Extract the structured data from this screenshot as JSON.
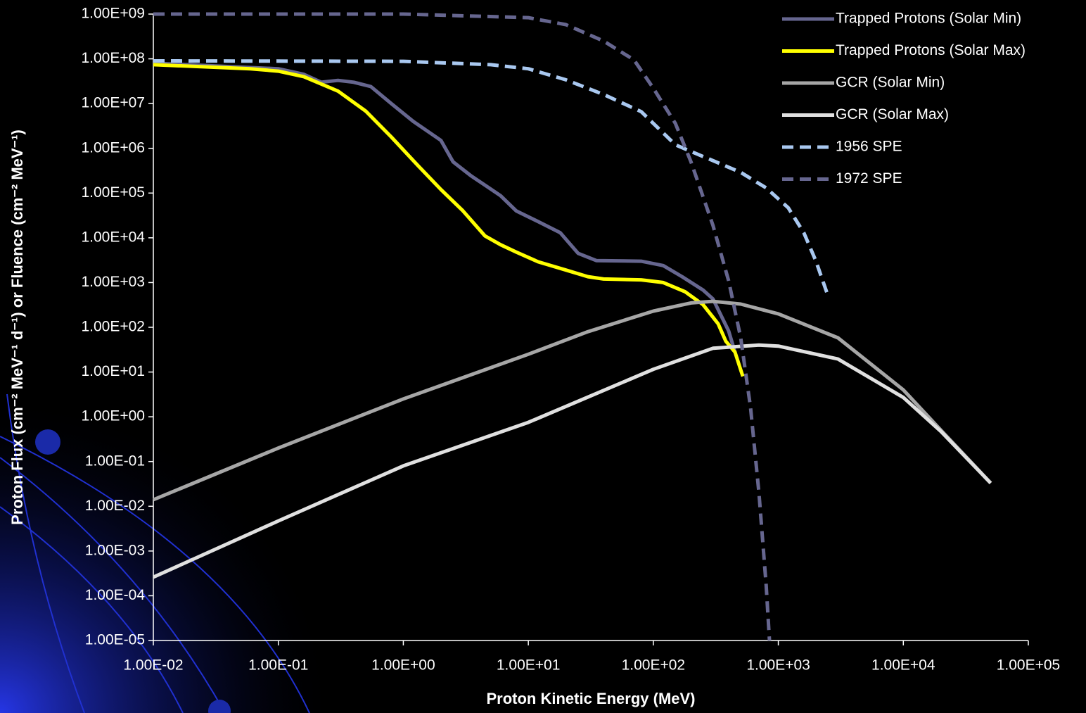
{
  "chart_data": {
    "type": "line",
    "x_label": "Proton Kinetic Energy (MeV)",
    "y_label": "Proton Flux (cm⁻² MeV⁻¹ d⁻¹) or Fluence (cm⁻² MeV⁻¹)",
    "log_x": true,
    "log_y": true,
    "legend": "top-right",
    "xlim": [
      0.01,
      100000
    ],
    "ylim": [
      1e-05,
      1000000000
    ],
    "xticks": [
      {
        "value": 0.01,
        "label": "1.00E-02"
      },
      {
        "value": 0.1,
        "label": "1.00E-01"
      },
      {
        "value": 1,
        "label": "1.00E+00"
      },
      {
        "value": 10,
        "label": "1.00E+01"
      },
      {
        "value": 100,
        "label": "1.00E+02"
      },
      {
        "value": 1000,
        "label": "1.00E+03"
      },
      {
        "value": 10000,
        "label": "1.00E+04"
      },
      {
        "value": 100000,
        "label": "1.00E+05"
      }
    ],
    "yticks": [
      {
        "value": 1000000000,
        "label": "1.00E+09"
      },
      {
        "value": 100000000,
        "label": "1.00E+08"
      },
      {
        "value": 10000000,
        "label": "1.00E+07"
      },
      {
        "value": 1000000,
        "label": "1.00E+06"
      },
      {
        "value": 100000,
        "label": "1.00E+05"
      },
      {
        "value": 10000,
        "label": "1.00E+04"
      },
      {
        "value": 1000,
        "label": "1.00E+03"
      },
      {
        "value": 100,
        "label": "1.00E+02"
      },
      {
        "value": 10,
        "label": "1.00E+01"
      },
      {
        "value": 1,
        "label": "1.00E+00"
      },
      {
        "value": 0.1,
        "label": "1.00E-01"
      },
      {
        "value": 0.01,
        "label": "1.00E-02"
      },
      {
        "value": 0.001,
        "label": "1.00E-03"
      },
      {
        "value": 0.0001,
        "label": "1.00E-04"
      },
      {
        "value": 1e-05,
        "label": "1.00E-05"
      }
    ],
    "series": [
      {
        "name": "Trapped Protons (Solar Min)",
        "color": "#66668f",
        "dash": false,
        "x": [
          0.01,
          0.1,
          0.16,
          0.22,
          0.3,
          0.4,
          0.55,
          0.8,
          1.2,
          2,
          2.5,
          3.5,
          4.5,
          6,
          8,
          12,
          18,
          25,
          35,
          80,
          120,
          170,
          250,
          300,
          400,
          450
        ],
        "values": [
          80000000,
          60000000,
          45000000,
          30000000,
          33000000,
          30000000,
          24000000,
          10000000,
          4000000,
          1500000,
          500000,
          240000,
          150000,
          87000,
          40000,
          23000,
          13000,
          4500,
          3100,
          3000,
          2400,
          1350,
          680,
          430,
          83,
          28
        ]
      },
      {
        "name": "Trapped Protons (Solar Max)",
        "color": "#ffff00",
        "dash": false,
        "x": [
          0.01,
          0.06,
          0.1,
          0.16,
          0.3,
          0.5,
          0.8,
          1.3,
          2,
          3,
          4.5,
          6,
          8,
          12,
          20,
          30,
          40,
          80,
          120,
          180,
          250,
          330,
          380,
          450,
          520
        ],
        "values": [
          74000000,
          60000000,
          53000000,
          40000000,
          19000000,
          6800000,
          1800000,
          420000,
          120000,
          40000,
          11000,
          7000,
          4800,
          2900,
          1900,
          1350,
          1200,
          1150,
          1000,
          620,
          320,
          120,
          49,
          28,
          8
        ]
      },
      {
        "name": "GCR (Solar Min)",
        "color": "#a6a6a6",
        "dash": false,
        "x": [
          0.01,
          0.1,
          1,
          10,
          30,
          100,
          200,
          300,
          500,
          1000,
          3000,
          10000,
          20000,
          50000
        ],
        "values": [
          0.014,
          0.2,
          2.5,
          25,
          80,
          230,
          350,
          380,
          330,
          200,
          58,
          4,
          0.5,
          0.033
        ]
      },
      {
        "name": "GCR (Solar Max)",
        "color": "#e0e0e0",
        "dash": false,
        "x": [
          0.01,
          0.1,
          1,
          10,
          100,
          300,
          700,
          1000,
          3000,
          10000,
          20000,
          50000
        ],
        "values": [
          0.00026,
          0.0047,
          0.08,
          0.75,
          11.5,
          34,
          40,
          38,
          19.5,
          2.7,
          0.47,
          0.033
        ]
      },
      {
        "name": "1956 SPE",
        "color": "#a9c8f0",
        "dash": true,
        "x": [
          0.01,
          1,
          5,
          10,
          20,
          40,
          80,
          150,
          200,
          300,
          500,
          800,
          1200,
          1600,
          2000,
          2500
        ],
        "values": [
          90000000,
          88000000,
          74000000,
          60000000,
          34000000,
          16000000,
          6600000,
          1200000,
          850000,
          530000,
          290000,
          130000,
          47000,
          13000,
          3000,
          500
        ]
      },
      {
        "name": "1972 SPE",
        "color": "#66668f",
        "dash": true,
        "x": [
          0.01,
          1,
          10,
          20,
          40,
          70,
          100,
          150,
          200,
          300,
          400,
          500,
          600,
          700,
          800,
          850
        ],
        "values": [
          1000000000,
          1000000000,
          830000000,
          580000000,
          250000000,
          95000000,
          22000000,
          3600000,
          500000,
          19000,
          1100,
          58,
          1.6,
          0.02,
          0.00017,
          1e-05
        ]
      }
    ]
  }
}
